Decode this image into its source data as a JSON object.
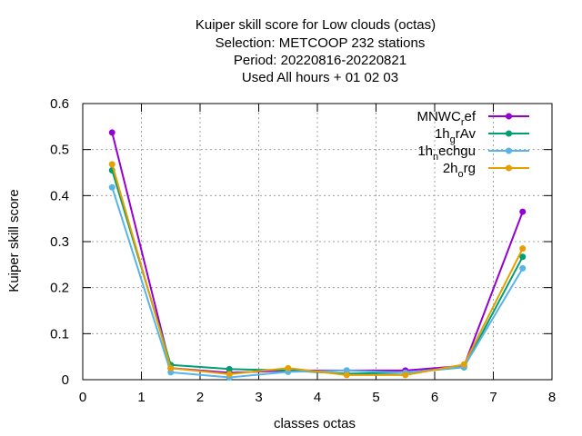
{
  "chart_data": {
    "type": "line",
    "title_lines": [
      "Kuiper skill score  for Low clouds (octas)",
      "Selection: METCOOP    232 stations",
      "Period: 20220816-20220821",
      "Used  All hours + 01 02 03"
    ],
    "xlabel": "classes octas",
    "ylabel": "Kuiper skill score",
    "xlim": [
      0,
      8
    ],
    "ylim": [
      0,
      0.6
    ],
    "xticks": [
      0,
      1,
      2,
      3,
      4,
      5,
      6,
      7,
      8
    ],
    "yticks": [
      0,
      0.1,
      0.2,
      0.3,
      0.4,
      0.5,
      0.6
    ],
    "ytick_labels": [
      "0",
      "0.1",
      "0.2",
      "0.3",
      "0.4",
      "0.5",
      "0.6"
    ],
    "grid": true,
    "legend_position": "top-right",
    "x": [
      0.5,
      1.5,
      2.5,
      3.5,
      4.5,
      5.5,
      6.5,
      7.5
    ],
    "series": [
      {
        "name": "MNWC_ref",
        "legend_base": "MNWC",
        "legend_sub": "r",
        "legend_rest": "ef",
        "color": "#9400d3",
        "values": [
          0.537,
          0.025,
          0.015,
          0.02,
          0.02,
          0.02,
          0.03,
          0.365
        ]
      },
      {
        "name": "1h_grAv",
        "legend_base": "1h",
        "legend_sub": "g",
        "legend_rest": "rAv",
        "color": "#009e73",
        "values": [
          0.455,
          0.032,
          0.023,
          0.02,
          0.013,
          0.015,
          0.027,
          0.267
        ]
      },
      {
        "name": "1h_nechgu",
        "legend_base": "1h",
        "legend_sub": "n",
        "legend_rest": "echgu",
        "color": "#56b4e9",
        "values": [
          0.418,
          0.016,
          0.005,
          0.017,
          0.02,
          0.015,
          0.028,
          0.242
        ]
      },
      {
        "name": "2h_org",
        "legend_base": "2h",
        "legend_sub": "o",
        "legend_rest": "rg",
        "color": "#e69f00",
        "values": [
          0.468,
          0.025,
          0.012,
          0.025,
          0.01,
          0.01,
          0.033,
          0.285
        ]
      }
    ]
  }
}
